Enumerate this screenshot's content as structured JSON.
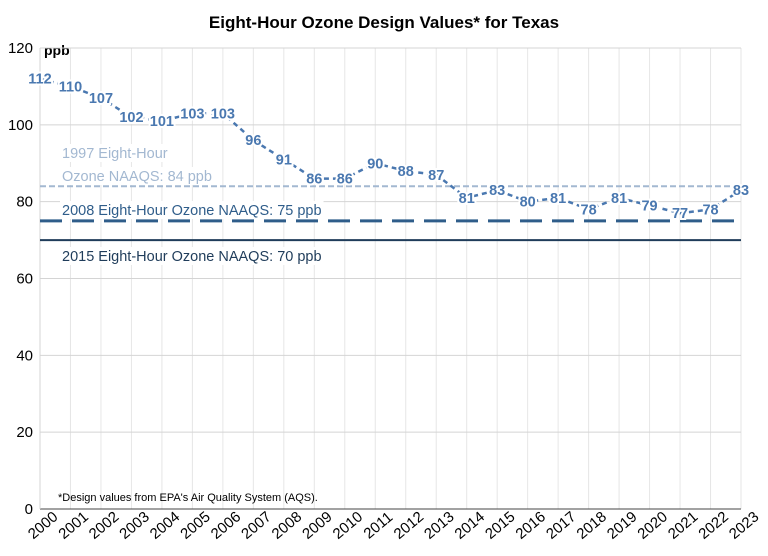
{
  "chart_data": {
    "type": "line",
    "title": "Eight-Hour Ozone Design Values* for Texas",
    "ylabel": "ppb",
    "ylim": [
      0,
      120
    ],
    "yticks": [
      0,
      20,
      40,
      60,
      80,
      100,
      120
    ],
    "x": [
      2000,
      2001,
      2002,
      2003,
      2004,
      2005,
      2006,
      2007,
      2008,
      2009,
      2010,
      2011,
      2012,
      2013,
      2014,
      2015,
      2016,
      2017,
      2018,
      2019,
      2020,
      2021,
      2022,
      2023
    ],
    "series": [
      {
        "values": [
          112,
          110,
          107,
          102,
          101,
          103,
          103,
          96,
          91,
          86,
          86,
          90,
          88,
          87,
          81,
          83,
          80,
          81,
          78,
          81,
          79,
          77,
          78,
          83
        ],
        "color": "#4a78b0",
        "style": "dashed",
        "data_labels": true
      }
    ],
    "reference_lines": [
      {
        "label_line1": "1997 Eight-Hour",
        "label_line2": "Ozone NAAQS: 84 ppb",
        "value": 84,
        "color": "#a3b8d1",
        "style": "short-dash"
      },
      {
        "label": "2008 Eight-Hour Ozone NAAQS: 75 ppb",
        "value": 75,
        "color": "#2f5d8a",
        "style": "long-dash"
      },
      {
        "label": "2015 Eight-Hour Ozone NAAQS: 70 ppb",
        "value": 70,
        "color": "#1f3c5a",
        "style": "solid"
      }
    ],
    "footnote": "*Design values from EPA's Air Quality System (AQS).",
    "grid": true,
    "legend": "none"
  }
}
